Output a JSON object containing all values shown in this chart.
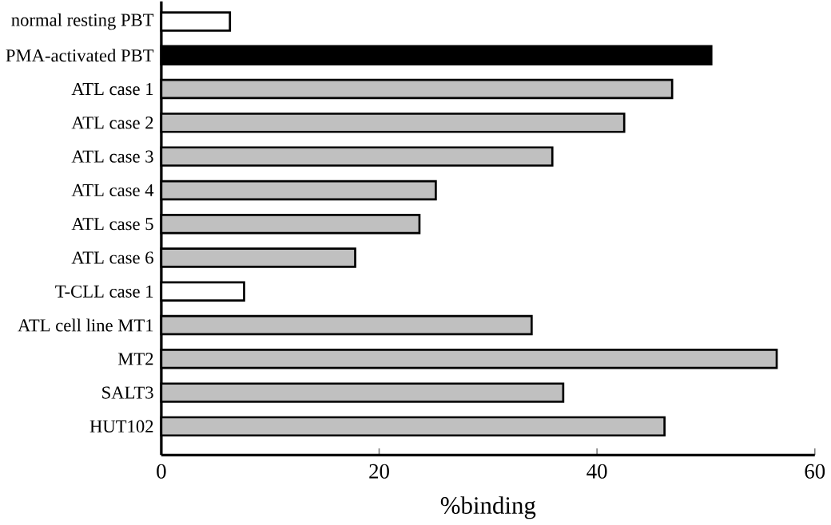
{
  "chart_data": {
    "type": "bar",
    "orientation": "horizontal",
    "xlabel": "%binding",
    "categories": [
      "normal resting PBT",
      "PMA-activated PBT",
      "ATL case 1",
      "ATL case 2",
      "ATL case 3",
      "ATL case 4",
      "ATL case 5",
      "ATL case 6",
      "T-CLL case 1",
      "ATL cell line  MT1",
      "MT2",
      "SALT3",
      "HUT102"
    ],
    "values": [
      6.3,
      50.5,
      46.9,
      42.5,
      35.9,
      25.2,
      23.7,
      17.8,
      7.6,
      34.0,
      56.5,
      36.9,
      46.2
    ],
    "colors": [
      "#ffffff",
      "#000000",
      "#c0c0c0",
      "#c0c0c0",
      "#c0c0c0",
      "#c0c0c0",
      "#c0c0c0",
      "#c0c0c0",
      "#ffffff",
      "#c0c0c0",
      "#c0c0c0",
      "#c0c0c0",
      "#c0c0c0"
    ],
    "xlim": [
      0,
      60
    ],
    "xticks": [
      0,
      20,
      40,
      60
    ]
  }
}
